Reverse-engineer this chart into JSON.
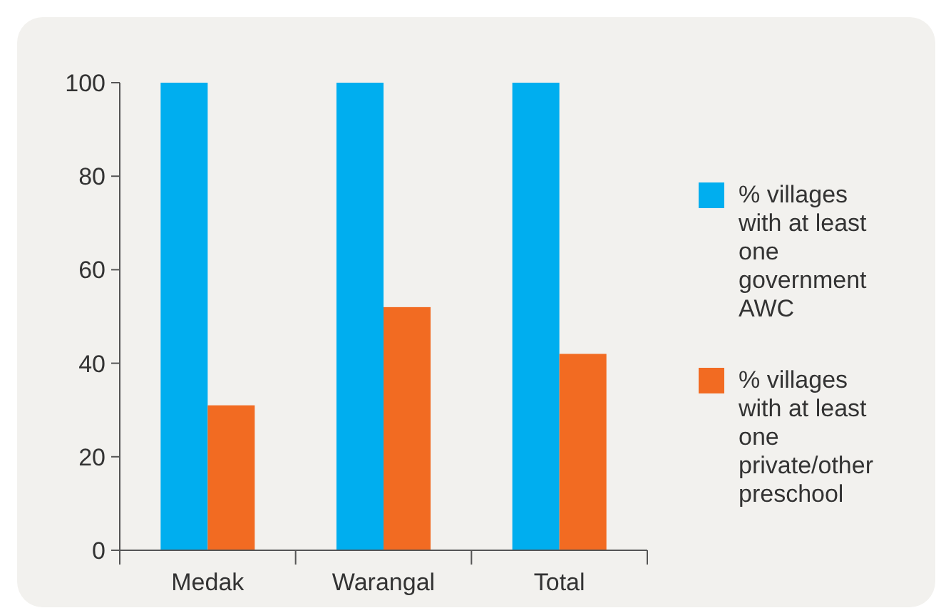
{
  "chart_data": {
    "type": "bar",
    "categories": [
      "Medak",
      "Warangal",
      "Total"
    ],
    "series": [
      {
        "name": "% villages with at least one government AWC",
        "color": "#00aeef",
        "values": [
          100,
          100,
          100
        ]
      },
      {
        "name": "% villages with at least one private/other preschool",
        "color": "#f26b22",
        "values": [
          31,
          52,
          42
        ]
      }
    ],
    "ylim": [
      0,
      100
    ],
    "yticks": [
      0,
      20,
      40,
      60,
      80,
      100
    ],
    "grid": false,
    "legend": "right"
  }
}
